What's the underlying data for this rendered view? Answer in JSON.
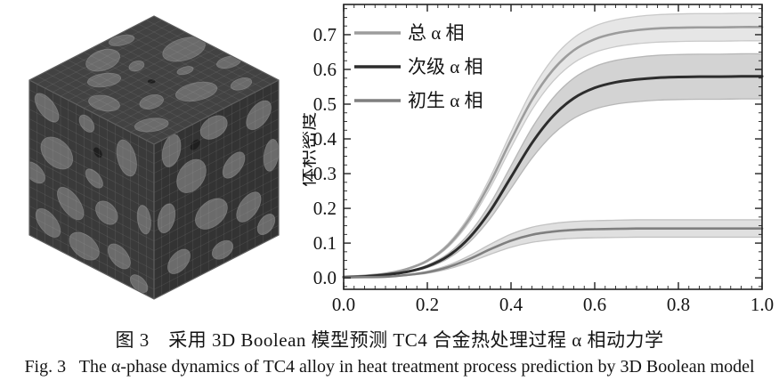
{
  "figure": {
    "caption_zh": "图 3　采用 3D Boolean 模型预测 TC4 合金热处理过程 α 相动力学",
    "caption_en": "Fig. 3   The α-phase dynamics of TC4 alloy in heat treatment process prediction by 3D Boolean model"
  },
  "cube": {
    "label": "3D Boolean model microstructure cube",
    "colors": {
      "top_face": "#424242",
      "left_face": "#3a3a3a",
      "right_face": "#333333",
      "blob": "#6b6b6b",
      "blob_edge": "rgba(205,205,205,0.28)",
      "dark_dot": "#1f1f1f",
      "mesh": "rgba(195,195,195,0.16)",
      "edge": "#5f5f5f"
    }
  },
  "chart_data": {
    "type": "line",
    "title": "",
    "xlabel": "",
    "ylabel": "体积密度",
    "xlim": [
      0,
      1
    ],
    "ylim": [
      -0.033,
      0.787
    ],
    "grid": false,
    "axis_color": "#222222",
    "x_ticks": [
      0,
      0.2,
      0.4,
      0.6,
      0.8,
      1.0
    ],
    "x_tick_labels": [
      "0.0",
      "0.2",
      "0.4",
      "0.6",
      "0.8",
      "1.0"
    ],
    "y_ticks": [
      0,
      0.1,
      0.2,
      0.3,
      0.4,
      0.5,
      0.6,
      0.7
    ],
    "y_tick_labels": [
      "0.0",
      "0.1",
      "0.2",
      "0.3",
      "0.4",
      "0.5",
      "0.6",
      "0.7"
    ],
    "legend": {
      "position": "top-left"
    },
    "x": [
      0,
      0.05,
      0.1,
      0.15,
      0.2,
      0.25,
      0.3,
      0.35,
      0.4,
      0.45,
      0.5,
      0.55,
      0.6,
      0.65,
      0.7,
      0.75,
      0.8,
      0.85,
      0.9,
      0.95,
      1.0
    ],
    "series": [
      {
        "name": "总 α 相",
        "values": [
          0.003,
          0.006,
          0.012,
          0.025,
          0.049,
          0.094,
          0.169,
          0.274,
          0.397,
          0.512,
          0.598,
          0.655,
          0.687,
          0.704,
          0.713,
          0.718,
          0.72,
          0.721,
          0.721,
          0.722,
          0.722
        ],
        "band_ratio": 0.055,
        "color": "#9c9c9c",
        "band_color": "#e6e6e6",
        "band_edge": "#c9c9c9",
        "line_width": 2.6
      },
      {
        "name": "次级 α 相",
        "values": [
          0.002,
          0.004,
          0.009,
          0.017,
          0.033,
          0.063,
          0.115,
          0.192,
          0.29,
          0.388,
          0.465,
          0.517,
          0.547,
          0.563,
          0.571,
          0.576,
          0.578,
          0.579,
          0.579,
          0.58,
          0.58
        ],
        "band_ratio": 0.112,
        "color": "#2d2d2d",
        "band_color": "#d3d3d3",
        "band_edge": "#b7b7b7",
        "line_width": 3.0
      },
      {
        "name": "初生 α 相",
        "values": [
          0.001,
          0.002,
          0.003,
          0.008,
          0.016,
          0.031,
          0.054,
          0.082,
          0.107,
          0.124,
          0.133,
          0.138,
          0.14,
          0.141,
          0.142,
          0.142,
          0.142,
          0.142,
          0.142,
          0.142,
          0.142
        ],
        "band_ratio": 0.176,
        "color": "#7f7f7f",
        "band_color": "#e0e0e0",
        "band_edge": "#c2c2c2",
        "line_width": 2.6
      }
    ]
  }
}
